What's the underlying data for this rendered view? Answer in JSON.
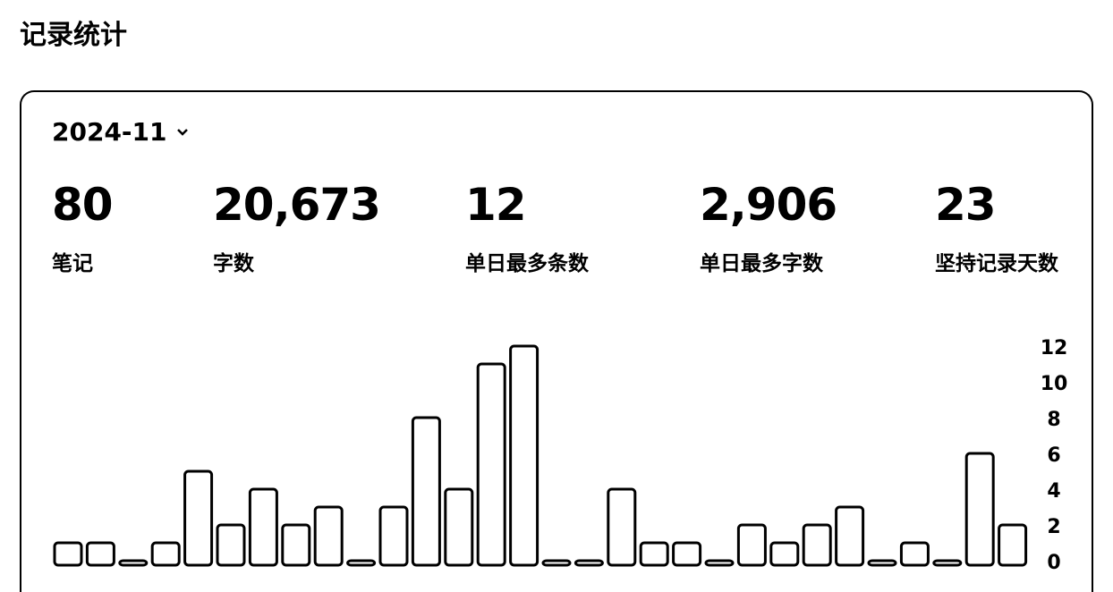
{
  "header": {
    "title": "记录统计"
  },
  "month": "2024-11",
  "stats": [
    {
      "value": "80",
      "label": "笔记"
    },
    {
      "value": "20,673",
      "label": "字数"
    },
    {
      "value": "12",
      "label": "单日最多条数"
    },
    {
      "value": "2,906",
      "label": "单日最多字数"
    },
    {
      "value": "23",
      "label": "坚持记录天数"
    }
  ],
  "chart_data": {
    "type": "bar",
    "values": [
      1,
      1,
      0,
      1,
      5,
      2,
      4,
      2,
      3,
      0,
      3,
      8,
      4,
      11,
      12,
      0,
      0,
      4,
      1,
      1,
      0,
      2,
      1,
      2,
      3,
      0,
      1,
      0,
      6,
      2
    ],
    "ylim": [
      0,
      12
    ],
    "yticks": [
      0,
      2,
      4,
      6,
      8,
      10,
      12
    ],
    "color": "#ffffff"
  }
}
